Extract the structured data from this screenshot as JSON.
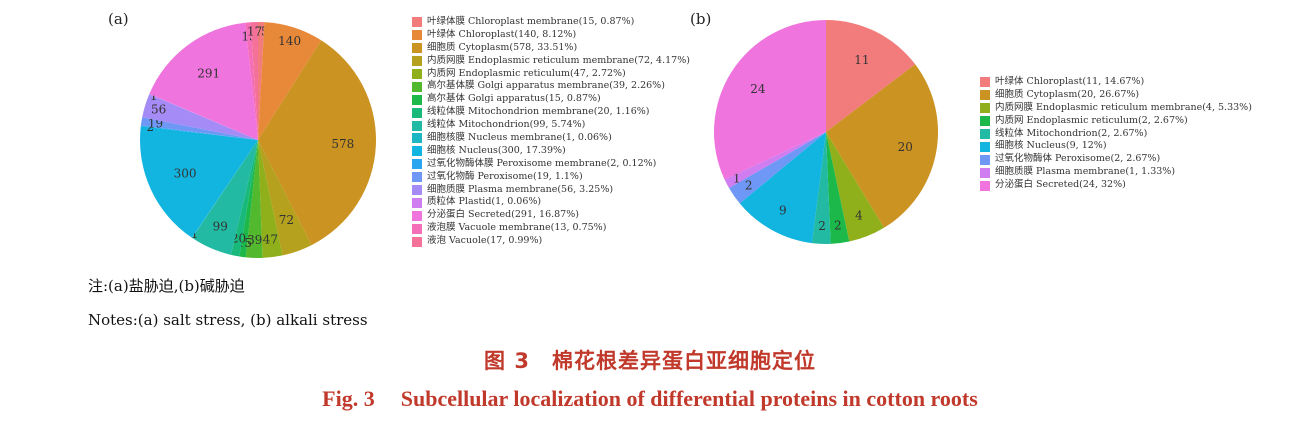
{
  "chart_data": [
    {
      "type": "pie",
      "panel_label": "(a)",
      "legend_placement": "right",
      "slices": [
        {
          "label": "叶绿体膜 Chloroplast membrane(15, 0.87%)",
          "value": 15,
          "color": "#F27C7C",
          "data_label": "15"
        },
        {
          "label": "叶绿体 Chloroplast(140, 8.12%)",
          "value": 140,
          "color": "#E8893A",
          "data_label": "140"
        },
        {
          "label": "细胞质 Cytoplasm(578, 33.51%)",
          "value": 578,
          "color": "#CB9322",
          "data_label": "578"
        },
        {
          "label": "内质网膜 Endoplasmic reticulum membrane(72, 4.17%)",
          "value": 72,
          "color": "#B5A11E",
          "data_label": "72"
        },
        {
          "label": "内质网 Endoplasmic reticulum(47, 2.72%)",
          "value": 47,
          "color": "#8FB01B",
          "data_label": "47"
        },
        {
          "label": "高尔基体膜 Golgi apparatus membrane(39, 2.26%)",
          "value": 39,
          "color": "#52B82E",
          "data_label": "39"
        },
        {
          "label": "高尔基体 Golgi apparatus(15, 0.87%)",
          "value": 15,
          "color": "#1CB84A",
          "data_label": "15"
        },
        {
          "label": "线粒体膜 Mitochondrion membrane(20, 1.16%)",
          "value": 20,
          "color": "#19B97C",
          "data_label": "20"
        },
        {
          "label": "线粒体 Mitochondrion(99, 5.74%)",
          "value": 99,
          "color": "#22BAA3",
          "data_label": "99"
        },
        {
          "label": "细胞核膜 Nucleus membrane(1, 0.06%)",
          "value": 1,
          "color": "#1DB6C2",
          "data_label": "1"
        },
        {
          "label": "细胞核 Nucleus(300, 17.39%)",
          "value": 300,
          "color": "#12B4E0",
          "data_label": "300"
        },
        {
          "label": "过氧化物酶体膜 Peroxisome membrane(2, 0.12%)",
          "value": 2,
          "color": "#2AA6F0",
          "data_label": "2"
        },
        {
          "label": "过氧化物酶 Peroxisome(19, 1.1%)",
          "value": 19,
          "color": "#6F97F5",
          "data_label": "19"
        },
        {
          "label": "细胞质膜 Plasma membrane(56, 3.25%)",
          "value": 56,
          "color": "#A58BF5",
          "data_label": "56"
        },
        {
          "label": "质粒体 Plastid(1, 0.06%)",
          "value": 1,
          "color": "#CF7DF0",
          "data_label": "1"
        },
        {
          "label": "分泌蛋白 Secreted(291, 16.87%)",
          "value": 291,
          "color": "#EF74DD",
          "data_label": "291"
        },
        {
          "label": "液泡膜 Vacuole membrane(13, 0.75%)",
          "value": 13,
          "color": "#F56FB8",
          "data_label": "13"
        },
        {
          "label": "液泡 Vacuole(17, 0.99%)",
          "value": 17,
          "color": "#F4729A",
          "data_label": "17"
        }
      ]
    },
    {
      "type": "pie",
      "panel_label": "(b)",
      "legend_placement": "right",
      "slices": [
        {
          "label": "叶绿体 Chloroplast(11, 14.67%)",
          "value": 11,
          "color": "#F27C7C",
          "data_label": "11"
        },
        {
          "label": "细胞质 Cytoplasm(20, 26.67%)",
          "value": 20,
          "color": "#CB9322",
          "data_label": "20"
        },
        {
          "label": "内质网膜 Endoplasmic reticulum membrane(4, 5.33%)",
          "value": 4,
          "color": "#8FB01B",
          "data_label": "4"
        },
        {
          "label": "内质网 Endoplasmic reticulum(2, 2.67%)",
          "value": 2,
          "color": "#1CB84A",
          "data_label": "2"
        },
        {
          "label": "线粒体 Mitochondrion(2, 2.67%)",
          "value": 2,
          "color": "#22BAA3",
          "data_label": "2"
        },
        {
          "label": "细胞核 Nucleus(9, 12%)",
          "value": 9,
          "color": "#12B4E0",
          "data_label": "9"
        },
        {
          "label": "过氧化物酶体 Peroxisome(2, 2.67%)",
          "value": 2,
          "color": "#6F97F5",
          "data_label": "2"
        },
        {
          "label": "细胞质膜 Plasma membrane(1, 1.33%)",
          "value": 1,
          "color": "#CF7DF0",
          "data_label": "1"
        },
        {
          "label": "分泌蛋白 Secreted(24, 32%)",
          "value": 24,
          "color": "#EF74DD",
          "data_label": "24"
        }
      ]
    }
  ],
  "notes": {
    "cn": "注:(a)盐胁迫,(b)碱胁迫",
    "en": "Notes:(a) salt stress, (b) alkali stress"
  },
  "caption": {
    "cn": "图 3　棉花根差异蛋白亚细胞定位",
    "en_fig": "Fig. 3",
    "en_title": "Subcellular localization of differential proteins in cotton roots"
  }
}
